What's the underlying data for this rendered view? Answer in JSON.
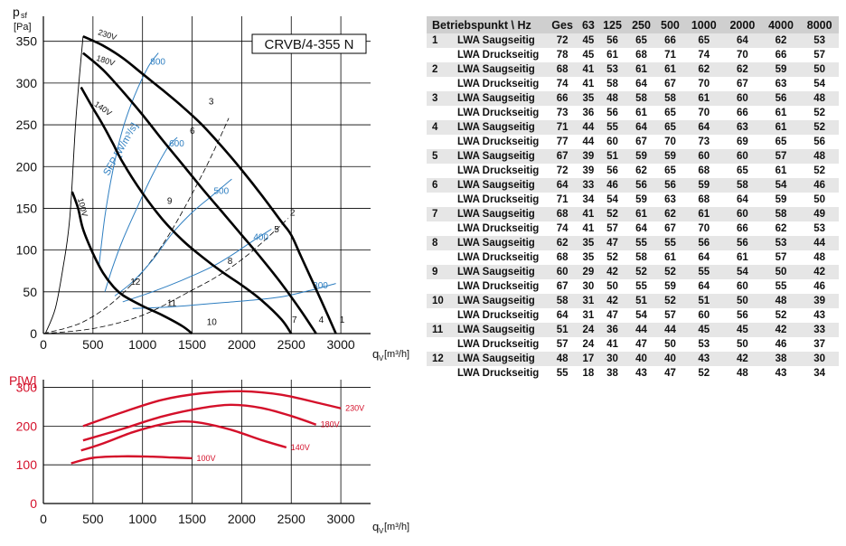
{
  "chart_data": [
    {
      "type": "line",
      "title": "CRVB/4-355 N",
      "ylabel_top": "p",
      "ylabel_sub": "sf",
      "ylabel_unit": "[Pa]",
      "xlabel": "q",
      "xlabel_sub": "V",
      "xlabel_unit": "[m³/h]",
      "xlim": [
        0,
        3300
      ],
      "ylim": [
        0,
        380
      ],
      "xticks": [
        0,
        500,
        1000,
        1500,
        2000,
        2500,
        3000
      ],
      "yticks": [
        0,
        50,
        100,
        150,
        200,
        250,
        300,
        350
      ],
      "grid": true,
      "series": [
        {
          "name": "230V",
          "x": [
            400,
            600,
            800,
            1000,
            1200,
            1400,
            1600,
            1800,
            2000,
            2200,
            2400,
            2500,
            2600,
            2800,
            2950
          ],
          "y": [
            356,
            345,
            330,
            311,
            292,
            272,
            250,
            224,
            196,
            166,
            134,
            118,
            92,
            40,
            0
          ]
        },
        {
          "name": "180V",
          "x": [
            400,
            600,
            800,
            1000,
            1200,
            1400,
            1600,
            1800,
            2000,
            2200,
            2400,
            2600,
            2750
          ],
          "y": [
            336,
            316,
            290,
            262,
            232,
            203,
            174,
            146,
            118,
            90,
            60,
            27,
            0
          ]
        },
        {
          "name": "140V",
          "x": [
            380,
            500,
            600,
            700,
            800,
            1000,
            1200,
            1400,
            1600,
            1800,
            2000,
            2200,
            2400,
            2500
          ],
          "y": [
            295,
            270,
            250,
            228,
            205,
            168,
            137,
            112,
            92,
            74,
            58,
            40,
            17,
            0
          ]
        },
        {
          "name": "100V",
          "x": [
            290,
            350,
            400,
            500,
            600,
            700,
            800,
            1000,
            1200,
            1400,
            1500
          ],
          "y": [
            170,
            150,
            125,
            96,
            73,
            57,
            46,
            33,
            22,
            9,
            0
          ]
        },
        {
          "name": "",
          "x": [
            20,
            120,
            200,
            250,
            280,
            330,
            400
          ],
          "y": [
            0,
            30,
            80,
            120,
            160,
            260,
            356
          ]
        }
      ],
      "sfp_label": "SFP [W/m³/s]",
      "sfp_curves": [
        {
          "label": "800",
          "x": [
            560,
            620,
            700,
            800,
            920,
            1060,
            1160
          ],
          "y": [
            80,
            140,
            195,
            245,
            285,
            320,
            336
          ]
        },
        {
          "label": "600",
          "x": [
            620,
            700,
            800,
            950,
            1100,
            1250,
            1350
          ],
          "y": [
            50,
            80,
            112,
            152,
            190,
            222,
            235
          ]
        },
        {
          "label": "500",
          "x": [
            720,
            900,
            1100,
            1300,
            1500,
            1700,
            1900
          ],
          "y": [
            45,
            62,
            88,
            120,
            145,
            165,
            185
          ]
        },
        {
          "label": "400",
          "x": [
            800,
            1100,
            1400,
            1700,
            1900,
            2100,
            2300
          ],
          "y": [
            38,
            50,
            64,
            80,
            94,
            110,
            125
          ]
        },
        {
          "label": "300",
          "x": [
            900,
            1300,
            1700,
            2100,
            2400,
            2700,
            2950
          ],
          "y": [
            30,
            32,
            36,
            40,
            44,
            52,
            60
          ]
        }
      ],
      "system_curves": [
        {
          "x": [
            0,
            400,
            800,
            1200,
            1600,
            1870
          ],
          "y": [
            0,
            14,
            48,
            106,
            190,
            258
          ]
        },
        {
          "x": [
            0,
            500,
            1000,
            1500,
            1800,
            2100,
            2470
          ],
          "y": [
            0,
            6,
            22,
            52,
            72,
            98,
            138
          ]
        }
      ],
      "operating_points": [
        {
          "label": "1",
          "x": 2960,
          "y": 10
        },
        {
          "label": "2",
          "x": 2460,
          "y": 138
        },
        {
          "label": "3",
          "x": 1640,
          "y": 271
        },
        {
          "label": "4",
          "x": 2750,
          "y": 10
        },
        {
          "label": "5",
          "x": 2300,
          "y": 118
        },
        {
          "label": "6",
          "x": 1450,
          "y": 236
        },
        {
          "label": "7",
          "x": 2480,
          "y": 10
        },
        {
          "label": "8",
          "x": 1830,
          "y": 80
        },
        {
          "label": "9",
          "x": 1220,
          "y": 152
        },
        {
          "label": "10",
          "x": 1620,
          "y": 7
        },
        {
          "label": "11",
          "x": 1220,
          "y": 30
        },
        {
          "label": "12",
          "x": 850,
          "y": 55
        }
      ]
    },
    {
      "type": "line",
      "ylabel": "P[W]",
      "xlabel": "q",
      "xlabel_sub": "V",
      "xlabel_unit": "[m³/h]",
      "xlim": [
        0,
        3300
      ],
      "ylim": [
        0,
        320
      ],
      "xticks": [
        0,
        500,
        1000,
        1500,
        2000,
        2500,
        3000
      ],
      "yticks": [
        0,
        100,
        200,
        300
      ],
      "grid": true,
      "series": [
        {
          "name": "230V",
          "x": [
            400,
            800,
            1200,
            1600,
            2000,
            2400,
            2800,
            3000
          ],
          "y": [
            200,
            236,
            268,
            285,
            290,
            281,
            258,
            246
          ]
        },
        {
          "name": "180V",
          "x": [
            400,
            800,
            1200,
            1600,
            1900,
            2200,
            2500,
            2750
          ],
          "y": [
            163,
            193,
            225,
            247,
            255,
            247,
            226,
            204
          ]
        },
        {
          "name": "140V",
          "x": [
            380,
            600,
            900,
            1200,
            1400,
            1600,
            1900,
            2200,
            2450
          ],
          "y": [
            137,
            155,
            184,
            205,
            212,
            208,
            190,
            164,
            145
          ]
        },
        {
          "name": "100V",
          "x": [
            280,
            500,
            800,
            1100,
            1300,
            1500
          ],
          "y": [
            104,
            118,
            122,
            121,
            119,
            117
          ]
        }
      ]
    }
  ],
  "noise_table": {
    "headers": [
      "Betriebspunkt \\ Hz",
      "Ges",
      "63",
      "125",
      "250",
      "500",
      "1000",
      "2000",
      "4000",
      "8000"
    ],
    "rows": [
      {
        "point": "1",
        "label": "LWA Saugseitig",
        "values": [
          "72",
          "45",
          "56",
          "65",
          "66",
          "65",
          "64",
          "62",
          "53"
        ]
      },
      {
        "point": "",
        "label": "LWA Druckseitig",
        "values": [
          "78",
          "45",
          "61",
          "68",
          "71",
          "74",
          "70",
          "66",
          "57"
        ]
      },
      {
        "point": "2",
        "label": "LWA Saugseitig",
        "values": [
          "68",
          "41",
          "53",
          "61",
          "61",
          "62",
          "62",
          "59",
          "50"
        ]
      },
      {
        "point": "",
        "label": "LWA Druckseitig",
        "values": [
          "74",
          "41",
          "58",
          "64",
          "67",
          "70",
          "67",
          "63",
          "54"
        ]
      },
      {
        "point": "3",
        "label": "LWA Saugseitig",
        "values": [
          "66",
          "35",
          "48",
          "58",
          "58",
          "61",
          "60",
          "56",
          "48"
        ]
      },
      {
        "point": "",
        "label": "LWA Druckseitig",
        "values": [
          "73",
          "36",
          "56",
          "61",
          "65",
          "70",
          "66",
          "61",
          "52"
        ]
      },
      {
        "point": "4",
        "label": "LWA Saugseitig",
        "values": [
          "71",
          "44",
          "55",
          "64",
          "65",
          "64",
          "63",
          "61",
          "52"
        ]
      },
      {
        "point": "",
        "label": "LWA Druckseitig",
        "values": [
          "77",
          "44",
          "60",
          "67",
          "70",
          "73",
          "69",
          "65",
          "56"
        ]
      },
      {
        "point": "5",
        "label": "LWA Saugseitig",
        "values": [
          "67",
          "39",
          "51",
          "59",
          "59",
          "60",
          "60",
          "57",
          "48"
        ]
      },
      {
        "point": "",
        "label": "LWA Druckseitig",
        "values": [
          "72",
          "39",
          "56",
          "62",
          "65",
          "68",
          "65",
          "61",
          "52"
        ]
      },
      {
        "point": "6",
        "label": "LWA Saugseitig",
        "values": [
          "64",
          "33",
          "46",
          "56",
          "56",
          "59",
          "58",
          "54",
          "46"
        ]
      },
      {
        "point": "",
        "label": "LWA Druckseitig",
        "values": [
          "71",
          "34",
          "54",
          "59",
          "63",
          "68",
          "64",
          "59",
          "50"
        ]
      },
      {
        "point": "7",
        "label": "LWA Saugseitig",
        "values": [
          "68",
          "41",
          "52",
          "61",
          "62",
          "61",
          "60",
          "58",
          "49"
        ]
      },
      {
        "point": "",
        "label": "LWA Druckseitig",
        "values": [
          "74",
          "41",
          "57",
          "64",
          "67",
          "70",
          "66",
          "62",
          "53"
        ]
      },
      {
        "point": "8",
        "label": "LWA Saugseitig",
        "values": [
          "62",
          "35",
          "47",
          "55",
          "55",
          "56",
          "56",
          "53",
          "44"
        ]
      },
      {
        "point": "",
        "label": "LWA Druckseitig",
        "values": [
          "68",
          "35",
          "52",
          "58",
          "61",
          "64",
          "61",
          "57",
          "48"
        ]
      },
      {
        "point": "9",
        "label": "LWA Saugseitig",
        "values": [
          "60",
          "29",
          "42",
          "52",
          "52",
          "55",
          "54",
          "50",
          "42"
        ]
      },
      {
        "point": "",
        "label": "LWA Druckseitig",
        "values": [
          "67",
          "30",
          "50",
          "55",
          "59",
          "64",
          "60",
          "55",
          "46"
        ]
      },
      {
        "point": "10",
        "label": "LWA Saugseitig",
        "values": [
          "58",
          "31",
          "42",
          "51",
          "52",
          "51",
          "50",
          "48",
          "39"
        ]
      },
      {
        "point": "",
        "label": "LWA Druckseitig",
        "values": [
          "64",
          "31",
          "47",
          "54",
          "57",
          "60",
          "56",
          "52",
          "43"
        ]
      },
      {
        "point": "11",
        "label": "LWA Saugseitig",
        "values": [
          "51",
          "24",
          "36",
          "44",
          "44",
          "45",
          "45",
          "42",
          "33"
        ]
      },
      {
        "point": "",
        "label": "LWA Druckseitig",
        "values": [
          "57",
          "24",
          "41",
          "47",
          "50",
          "53",
          "50",
          "46",
          "37"
        ]
      },
      {
        "point": "12",
        "label": "LWA Saugseitig",
        "values": [
          "48",
          "17",
          "30",
          "40",
          "40",
          "43",
          "42",
          "38",
          "30"
        ]
      },
      {
        "point": "",
        "label": "LWA Druckseitig",
        "values": [
          "55",
          "18",
          "38",
          "43",
          "47",
          "52",
          "48",
          "43",
          "34"
        ]
      }
    ]
  },
  "colors": {
    "fan_curve": "#000000",
    "sfp": "#2f7fc1",
    "power": "#d4102a",
    "grid": "#000000"
  }
}
